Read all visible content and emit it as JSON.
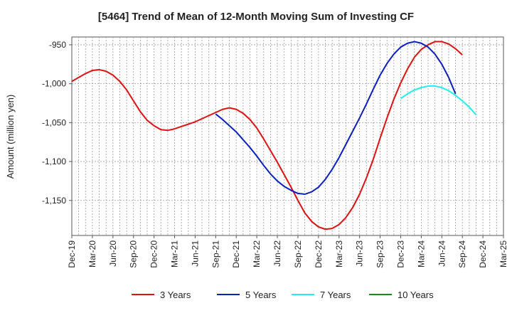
{
  "chart_data": {
    "type": "line",
    "title": "[5464]  Trend of Mean of 12-Month Moving Sum of Investing CF",
    "xlabel": "",
    "ylabel": "Amount (million yen)",
    "ylim": [
      -1195,
      -940
    ],
    "yticks": [
      -950,
      -1000,
      -1050,
      -1100,
      -1150
    ],
    "ytick_labels": [
      "-950",
      "-1,000",
      "-1,050",
      "-1,100",
      "-1,150"
    ],
    "x_start": "Dec-19",
    "x_months": 63,
    "xtick_labels": [
      "Dec-19",
      "Mar-20",
      "Jun-20",
      "Sep-20",
      "Dec-20",
      "Mar-21",
      "Jun-21",
      "Sep-21",
      "Dec-21",
      "Mar-22",
      "Jun-22",
      "Sep-22",
      "Dec-22",
      "Mar-23",
      "Jun-23",
      "Sep-23",
      "Dec-23",
      "Mar-24",
      "Jun-24",
      "Sep-24",
      "Dec-24",
      "Mar-25"
    ],
    "grid": true,
    "legend_position": "bottom",
    "series": [
      {
        "name": "3 Years",
        "color": "#dd1111",
        "start_index": 0,
        "values": [
          -997,
          -992,
          -987,
          -983,
          -982,
          -984,
          -989,
          -997,
          -1008,
          -1022,
          -1036,
          -1047,
          -1054,
          -1059,
          -1060,
          -1058,
          -1055,
          -1052,
          -1049,
          -1045,
          -1041,
          -1037,
          -1033,
          -1031,
          -1033,
          -1038,
          -1046,
          -1057,
          -1071,
          -1086,
          -1101,
          -1117,
          -1133,
          -1150,
          -1166,
          -1177,
          -1184,
          -1187,
          -1186,
          -1181,
          -1172,
          -1159,
          -1142,
          -1121,
          -1097,
          -1070,
          -1044,
          -1020,
          -999,
          -981,
          -966,
          -956,
          -950,
          -946,
          -946,
          -949,
          -955,
          -963
        ]
      },
      {
        "name": "5 Years",
        "color": "#0b1fbf",
        "start_index": 21,
        "values": [
          -1039,
          -1046,
          -1054,
          -1062,
          -1072,
          -1082,
          -1093,
          -1105,
          -1116,
          -1125,
          -1132,
          -1137,
          -1141,
          -1142,
          -1139,
          -1133,
          -1123,
          -1110,
          -1095,
          -1078,
          -1061,
          -1044,
          -1026,
          -1007,
          -989,
          -974,
          -962,
          -953,
          -948,
          -946,
          -948,
          -953,
          -962,
          -975,
          -992,
          -1013
        ]
      },
      {
        "name": "7 Years",
        "color": "#22eeee",
        "start_index": 48,
        "values": [
          -1019,
          -1013,
          -1008,
          -1005,
          -1003,
          -1003,
          -1005,
          -1009,
          -1015,
          -1022,
          -1030,
          -1040
        ]
      },
      {
        "name": "10 Years",
        "color": "#1a8a1a",
        "start_index": 0,
        "values": []
      }
    ]
  }
}
